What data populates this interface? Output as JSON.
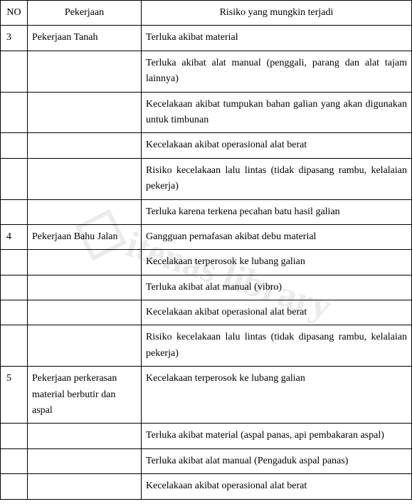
{
  "watermark": "itenas library",
  "columns": {
    "no": "NO",
    "pekerjaan": "Pekerjaan",
    "risiko": "Risiko yang mungkin terjadi"
  },
  "groups": [
    {
      "no": "3",
      "pekerjaan": "Pekerjaan Tanah",
      "risks": [
        "Terluka akibat material",
        "Terluka akibat alat manual (penggali, parang dan alat tajam lainnya)",
        "Kecelakaan akibat tumpukan bahan galian yang akan digunakan untuk timbunan",
        "Kecelakaan akibat operasional alat berat",
        "Risiko kecelakaan lalu lintas (tidak dipasang rambu, kelalaian pekerja)",
        "Terluka karena terkena pecahan batu hasil galian"
      ]
    },
    {
      "no": "4",
      "pekerjaan": "Pekerjaan Bahu Jalan",
      "risks": [
        "Gangguan pernafasan akibat debu material",
        "Kecelakaan terperosok ke lubang galian",
        "Terluka akibat alat manual (vibro)",
        "Kecelakaan akibat operasional alat berat",
        "Risiko kecelakaan lalu lintas (tidak dipasang rambu, kelalaian pekerja)"
      ]
    },
    {
      "no": "5",
      "pekerjaan": "Pekerjaan perkerasan material berbutir dan aspal",
      "risks": [
        "Kecelakaan terperosok ke lubang galian",
        "Terluka akibat material (aspal panas, api pembakaran aspal)",
        "Terluka akibat alat manual (Pengaduk aspal panas)",
        "Kecelakaan akibat operasional alat berat"
      ],
      "first_tall": true
    }
  ]
}
